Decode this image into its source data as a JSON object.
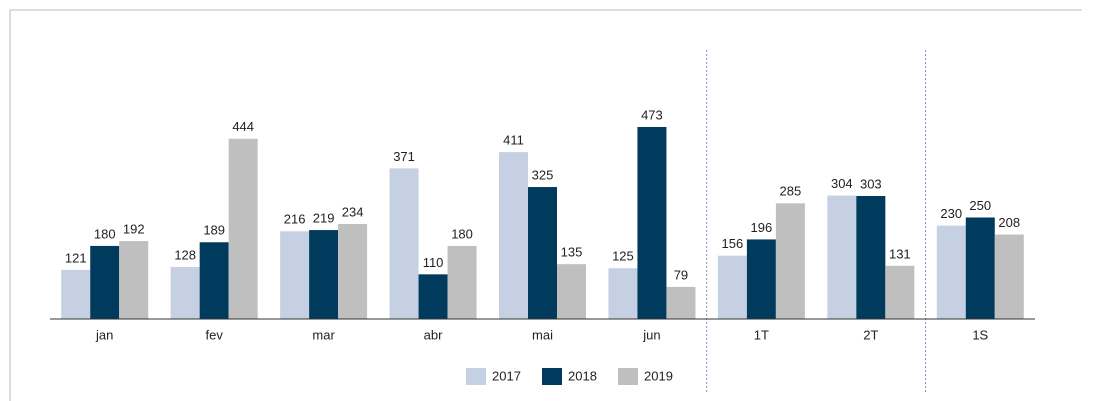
{
  "chart_data": {
    "type": "bar",
    "categories": [
      "jan",
      "fev",
      "mar",
      "abr",
      "mai",
      "jun",
      "1T",
      "2T",
      "1S"
    ],
    "series": [
      {
        "name": "2017",
        "color": "#c5d0e2",
        "values": [
          121,
          128,
          216,
          371,
          411,
          125,
          156,
          304,
          230
        ]
      },
      {
        "name": "2018",
        "color": "#003a5c",
        "values": [
          180,
          189,
          219,
          110,
          325,
          473,
          196,
          303,
          250
        ]
      },
      {
        "name": "2019",
        "color": "#bfbfbf",
        "values": [
          192,
          444,
          234,
          180,
          135,
          79,
          285,
          131,
          208
        ]
      }
    ],
    "ylim": [
      0,
      500
    ],
    "legend": "bottom"
  }
}
